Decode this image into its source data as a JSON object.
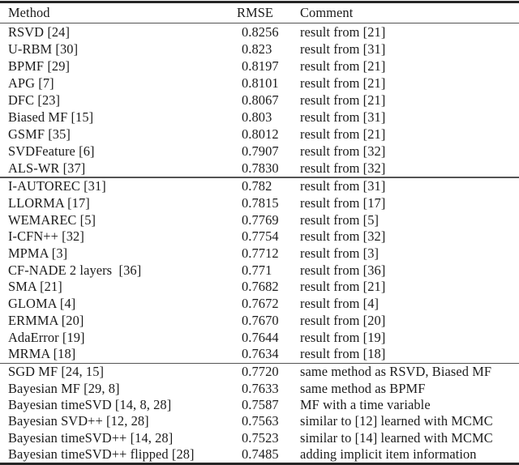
{
  "page": {
    "background_color": "#ffffff",
    "text_color": "#1b1b1b",
    "rule_color_heavy": "#262626",
    "rule_color_light": "#545454"
  },
  "table": {
    "columns": [
      {
        "label": "Method"
      },
      {
        "label": "RMSE"
      },
      {
        "label": "Comment"
      }
    ],
    "groups": [
      {
        "name": "group-1",
        "rows": [
          {
            "method": "RSVD [24]",
            "rmse": "0.8256",
            "comment": "result from [21]"
          },
          {
            "method": "U-RBM [30]",
            "rmse": "0.823",
            "comment": "result from [31]"
          },
          {
            "method": "BPMF [29]",
            "rmse": "0.8197",
            "comment": "result from [21]"
          },
          {
            "method": "APG [7]",
            "rmse": "0.8101",
            "comment": "result from [21]"
          },
          {
            "method": "DFC [23]",
            "rmse": "0.8067",
            "comment": "result from [21]"
          },
          {
            "method": "Biased MF [15]",
            "rmse": "0.803",
            "comment": "result from [31]"
          },
          {
            "method": "GSMF [35]",
            "rmse": "0.8012",
            "comment": "result from [21]"
          },
          {
            "method": "SVDFeature [6]",
            "rmse": "0.7907",
            "comment": "result from [32]"
          },
          {
            "method": "ALS-WR [37]",
            "rmse": "0.7830",
            "comment": "result from [32]"
          }
        ]
      },
      {
        "name": "group-2",
        "rows": [
          {
            "method": "I-AUTOREC [31]",
            "rmse": "0.782",
            "comment": "result from [31]"
          },
          {
            "method": "LLORMA [17]",
            "rmse": "0.7815",
            "comment": "result from [17]"
          },
          {
            "method": "WEMAREC [5]",
            "rmse": "0.7769",
            "comment": "result from [5]"
          },
          {
            "method": "I-CFN++ [32]",
            "rmse": "0.7754",
            "comment": "result from [32]"
          },
          {
            "method": "MPMA [3]",
            "rmse": "0.7712",
            "comment": "result from [3]"
          },
          {
            "method": "CF-NADE 2 layers  [36]",
            "rmse": "0.771",
            "comment": "result from [36]"
          },
          {
            "method": "SMA [21]",
            "rmse": "0.7682",
            "comment": "result from [21]"
          },
          {
            "method": "GLOMA [4]",
            "rmse": "0.7672",
            "comment": "result from [4]"
          },
          {
            "method": "ERMMA [20]",
            "rmse": "0.7670",
            "comment": "result from [20]"
          },
          {
            "method": "AdaError [19]",
            "rmse": "0.7644",
            "comment": "result from [19]"
          },
          {
            "method": "MRMA [18]",
            "rmse": "0.7634",
            "comment": "result from [18]"
          }
        ]
      },
      {
        "name": "group-3",
        "rows": [
          {
            "method": "SGD MF [24, 15]",
            "rmse": "0.7720",
            "comment": "same method as RSVD, Biased MF"
          },
          {
            "method": "Bayesian MF [29, 8]",
            "rmse": "0.7633",
            "comment": "same method as BPMF"
          },
          {
            "method": "Bayesian timeSVD [14, 8, 28]",
            "rmse": "0.7587",
            "comment": "MF with a time variable"
          },
          {
            "method": "Bayesian SVD++ [12, 28]",
            "rmse": "0.7563",
            "comment": "similar to [12] learned with MCMC"
          },
          {
            "method": "Bayesian timeSVD++ [14, 28]",
            "rmse": "0.7523",
            "comment": "similar to [14] learned with MCMC"
          },
          {
            "method": "Bayesian timeSVD++ flipped [28]",
            "rmse": "0.7485",
            "comment": "adding implicit item information"
          }
        ]
      }
    ]
  }
}
